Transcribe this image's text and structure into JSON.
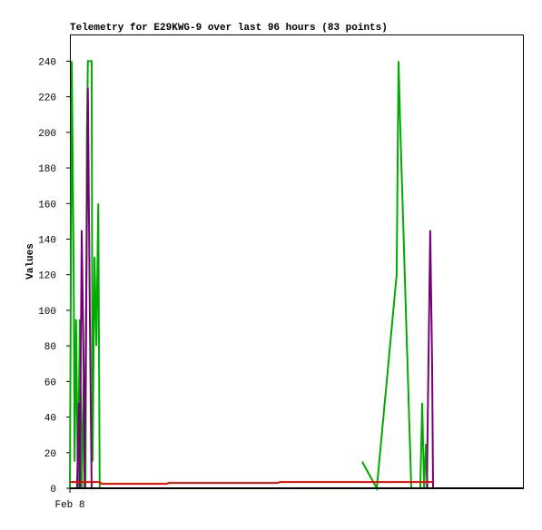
{
  "chart_data": {
    "type": "line",
    "title": "Telemetry for E29KWG-9 over last 96 hours (83 points)",
    "y_label": "Values",
    "xlim": [
      0,
      96
    ],
    "xticks": [
      {
        "value": 0,
        "label": "Feb 8"
      }
    ],
    "ylim": [
      0,
      255
    ],
    "yticks": [
      0,
      20,
      40,
      60,
      80,
      100,
      120,
      140,
      160,
      180,
      200,
      220,
      240
    ],
    "series": [
      {
        "color": "#00aa00",
        "x": [
          0,
          0.4,
          0.8,
          1.0,
          1.3,
          1.7,
          2.1,
          2.5,
          2.9,
          3.3,
          3.6,
          3.8,
          4.6,
          4.8,
          5.2,
          5.6,
          6.0,
          6.3,
          30,
          61.8,
          64.9,
          69.1,
          69.5,
          69.9,
          72.2,
          74.1,
          74.5,
          74.9,
          75.3,
          75.6
        ],
        "values": [
          0,
          240,
          120,
          15,
          95,
          0,
          95,
          0,
          60,
          0,
          200,
          240,
          240,
          15,
          130,
          80,
          160,
          0,
          null,
          15,
          0,
          120,
          240,
          200,
          0,
          0,
          48,
          0,
          25,
          0
        ]
      },
      {
        "color": "#770077",
        "x": [
          1.5,
          1.9,
          2.1,
          2.5,
          2.9,
          3.1,
          3.5,
          3.8,
          4.2,
          4.6,
          40,
          75.5,
          75.8,
          76.2,
          76.6,
          76.8
        ],
        "values": [
          0,
          48,
          0,
          145,
          70,
          0,
          120,
          225,
          100,
          0,
          null,
          0,
          65,
          145,
          70,
          0
        ]
      },
      {
        "color": "#ee0000",
        "x": [
          0,
          6.3,
          6.7,
          20.5,
          20.9,
          44.0,
          44.4,
          76.8
        ],
        "values": [
          3.5,
          3.5,
          2.5,
          2.5,
          3,
          3,
          3.5,
          3.5
        ]
      }
    ]
  }
}
